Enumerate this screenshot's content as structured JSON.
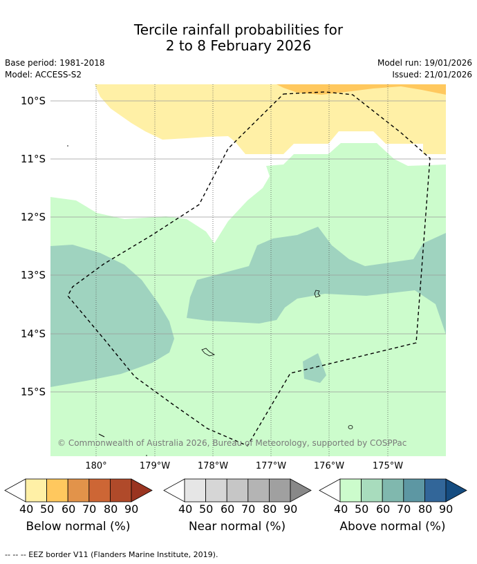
{
  "title": {
    "line1": "Tercile rainfall probabilities for",
    "line2": "2 to 8 February 2026"
  },
  "meta": {
    "base_period": "Base period: 1981-2018",
    "model": "Model: ACCESS-S2",
    "model_run": "Model run: 19/01/2026",
    "issued": "Issued: 21/01/2026"
  },
  "map": {
    "lat_labels": [
      "10°S",
      "11°S",
      "12°S",
      "13°S",
      "14°S",
      "15°S"
    ],
    "lon_labels": [
      "180°",
      "179°W",
      "178°W",
      "177°W",
      "176°W",
      "175°W"
    ],
    "copyright": "© Commonwealth of Australia 2026, Bureau of Meteorology, supported by COSPPac"
  },
  "colorbars": [
    {
      "label": "Below normal (%)",
      "ticks": [
        "40",
        "50",
        "60",
        "70",
        "80",
        "90"
      ],
      "colors": [
        "#fff0a6",
        "#ffc85e",
        "#e2934a",
        "#cd6635",
        "#b04a2a",
        "#9a3420"
      ]
    },
    {
      "label": "Near normal (%)",
      "ticks": [
        "40",
        "50",
        "60",
        "70",
        "80",
        "90"
      ],
      "colors": [
        "#e6e6e6",
        "#d6d6d6",
        "#c6c6c6",
        "#b4b4b4",
        "#a0a0a0",
        "#888888"
      ]
    },
    {
      "label": "Above normal (%)",
      "ticks": [
        "40",
        "50",
        "60",
        "70",
        "80",
        "90"
      ],
      "colors": [
        "#ccfccc",
        "#a8dcbd",
        "#80b8ae",
        "#5d97a3",
        "#326699",
        "#154c80"
      ]
    }
  ],
  "footer": "-- -- -- EEZ border V11 (Flanders Marine Institute, 2019)."
}
